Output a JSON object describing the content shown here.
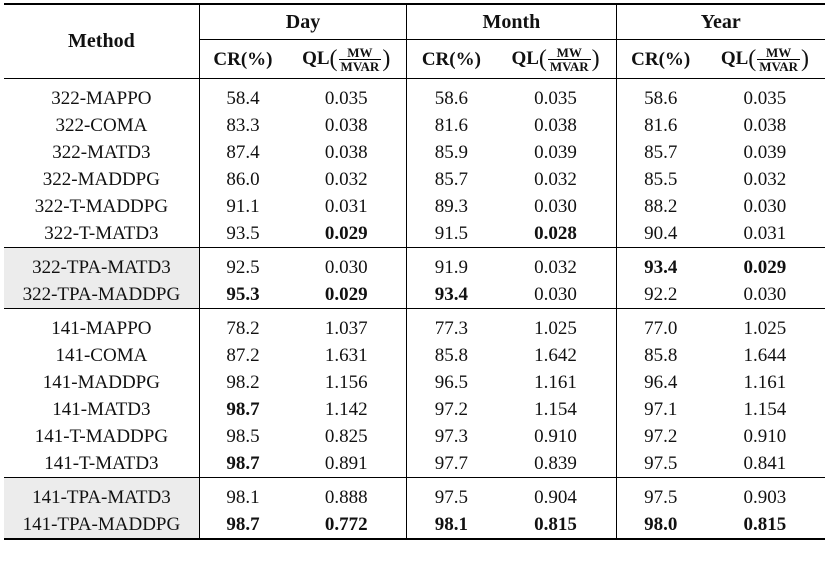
{
  "header": {
    "method": "Method",
    "groups": [
      "Day",
      "Month",
      "Year"
    ],
    "cr": "CR(%)",
    "ql_prefix": "QL",
    "ql_num": "MW",
    "ql_den": "MVAR",
    "lparen": "(",
    "rparen": ")"
  },
  "groups": [
    {
      "rows": [
        {
          "method": "322-MAPPO",
          "vals": [
            "58.4",
            "0.035",
            "58.6",
            "0.035",
            "58.6",
            "0.035"
          ],
          "bold": []
        },
        {
          "method": "322-COMA",
          "vals": [
            "83.3",
            "0.038",
            "81.6",
            "0.038",
            "81.6",
            "0.038"
          ],
          "bold": []
        },
        {
          "method": "322-MATD3",
          "vals": [
            "87.4",
            "0.038",
            "85.9",
            "0.039",
            "85.7",
            "0.039"
          ],
          "bold": []
        },
        {
          "method": "322-MADDPG",
          "vals": [
            "86.0",
            "0.032",
            "85.7",
            "0.032",
            "85.5",
            "0.032"
          ],
          "bold": []
        },
        {
          "method": "322-T-MADDPG",
          "vals": [
            "91.1",
            "0.031",
            "89.3",
            "0.030",
            "88.2",
            "0.030"
          ],
          "bold": []
        },
        {
          "method": "322-T-MATD3",
          "vals": [
            "93.5",
            "0.029",
            "91.5",
            "0.028",
            "90.4",
            "0.031"
          ],
          "bold": [
            1,
            3
          ]
        }
      ],
      "shaded": false
    },
    {
      "rows": [
        {
          "method": "322-TPA-MATD3",
          "vals": [
            "92.5",
            "0.030",
            "91.9",
            "0.032",
            "93.4",
            "0.029"
          ],
          "bold": [
            4,
            5
          ]
        },
        {
          "method": "322-TPA-MADDPG",
          "vals": [
            "95.3",
            "0.029",
            "93.4",
            "0.030",
            "92.2",
            "0.030"
          ],
          "bold": [
            0,
            1,
            2
          ]
        }
      ],
      "shaded": true
    },
    {
      "rows": [
        {
          "method": "141-MAPPO",
          "vals": [
            "78.2",
            "1.037",
            "77.3",
            "1.025",
            "77.0",
            "1.025"
          ],
          "bold": []
        },
        {
          "method": "141-COMA",
          "vals": [
            "87.2",
            "1.631",
            "85.8",
            "1.642",
            "85.8",
            "1.644"
          ],
          "bold": []
        },
        {
          "method": "141-MADDPG",
          "vals": [
            "98.2",
            "1.156",
            "96.5",
            "1.161",
            "96.4",
            "1.161"
          ],
          "bold": []
        },
        {
          "method": "141-MATD3",
          "vals": [
            "98.7",
            "1.142",
            "97.2",
            "1.154",
            "97.1",
            "1.154"
          ],
          "bold": [
            0
          ]
        },
        {
          "method": "141-T-MADDPG",
          "vals": [
            "98.5",
            "0.825",
            "97.3",
            "0.910",
            "97.2",
            "0.910"
          ],
          "bold": []
        },
        {
          "method": "141-T-MATD3",
          "vals": [
            "98.7",
            "0.891",
            "97.7",
            "0.839",
            "97.5",
            "0.841"
          ],
          "bold": [
            0
          ]
        }
      ],
      "shaded": false
    },
    {
      "rows": [
        {
          "method": "141-TPA-MATD3",
          "vals": [
            "98.1",
            "0.888",
            "97.5",
            "0.904",
            "97.5",
            "0.903"
          ],
          "bold": []
        },
        {
          "method": "141-TPA-MADDPG",
          "vals": [
            "98.7",
            "0.772",
            "98.1",
            "0.815",
            "98.0",
            "0.815"
          ],
          "bold": [
            0,
            1,
            2,
            3,
            4,
            5
          ]
        }
      ],
      "shaded": true
    }
  ]
}
